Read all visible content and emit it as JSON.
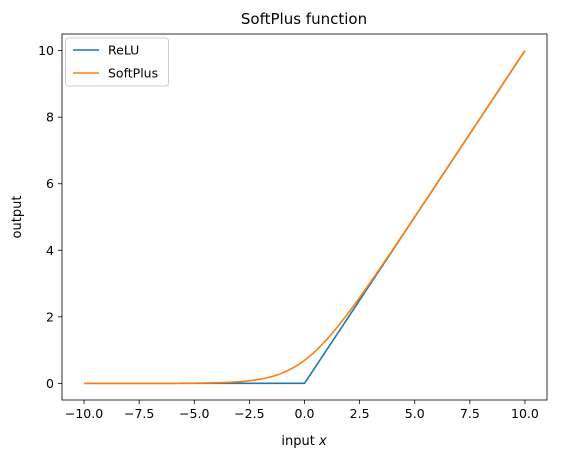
{
  "chart_data": {
    "type": "line",
    "title": "SoftPlus function",
    "xlabel_prefix": "input ",
    "xlabel_var": "x",
    "ylabel": "output",
    "xlim": [
      -11,
      11
    ],
    "ylim": [
      -0.5,
      10.5
    ],
    "xticks": [
      -10.0,
      -7.5,
      -5.0,
      -2.5,
      0.0,
      2.5,
      5.0,
      7.5,
      10.0
    ],
    "xtick_labels": [
      "−10.0",
      "−7.5",
      "−5.0",
      "−2.5",
      "0.0",
      "2.5",
      "5.0",
      "7.5",
      "10.0"
    ],
    "yticks": [
      0,
      2,
      4,
      6,
      8,
      10
    ],
    "ytick_labels": [
      "0",
      "2",
      "4",
      "6",
      "8",
      "10"
    ],
    "grid": false,
    "legend_position": "top-left",
    "series": [
      {
        "name": "ReLU",
        "color": "#1f77b4",
        "function": "relu",
        "x_range": [
          -10,
          10
        ]
      },
      {
        "name": "SoftPlus",
        "color": "#ff7f0e",
        "function": "softplus",
        "x_range": [
          -10,
          10
        ]
      }
    ]
  }
}
